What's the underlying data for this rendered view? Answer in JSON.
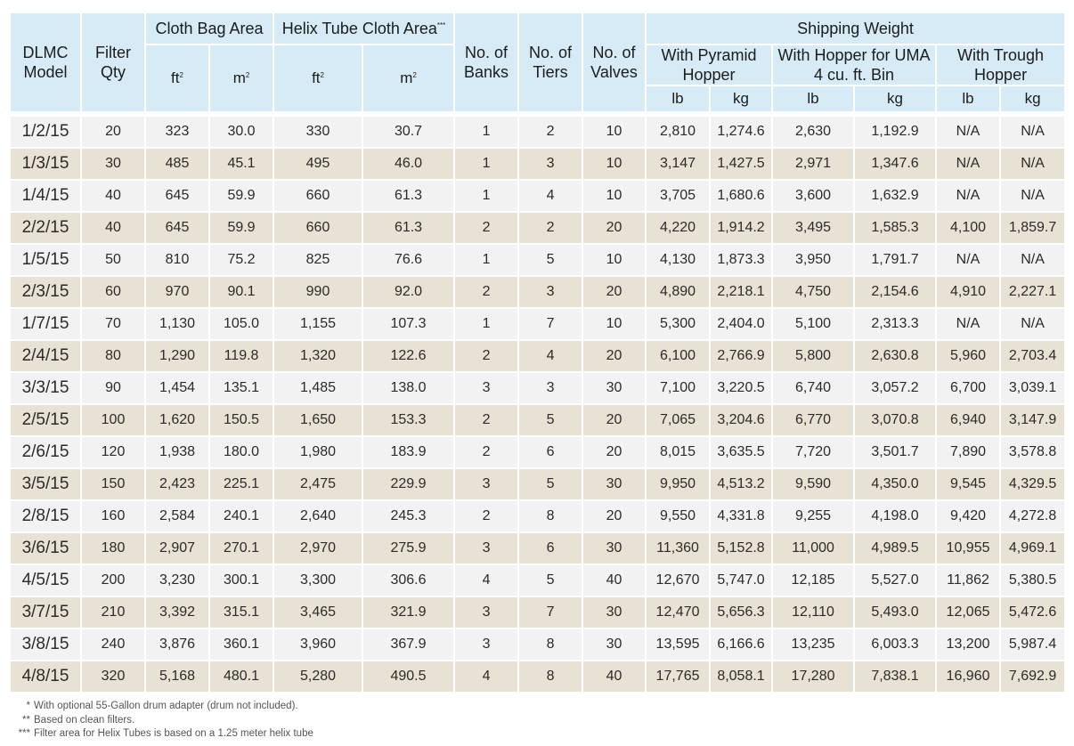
{
  "header": {
    "dlmc_model": "DLMC Model",
    "filter_qty": "Filter Qty",
    "cloth_bag_area": "Cloth Bag Area",
    "helix_tube_cloth_area": "Helix Tube Cloth Area",
    "helix_tube_mark": "***",
    "no_of_banks": "No. of Banks",
    "no_of_tiers": "No. of Tiers",
    "no_of_valves": "No. of Valves",
    "shipping_weight": "Shipping Weight",
    "with_pyramid_hopper": "With Pyramid Hopper",
    "with_hopper_uma": "With Hopper for UMA 4 cu. ft. Bin",
    "with_trough_hopper": "With Trough Hopper",
    "ft": "ft",
    "m": "m",
    "sq": "2",
    "lb": "lb",
    "kg": "kg"
  },
  "rows": [
    [
      "1/2/15",
      "20",
      "323",
      "30.0",
      "330",
      "30.7",
      "1",
      "2",
      "10",
      "2,810",
      "1,274.6",
      "2,630",
      "1,192.9",
      "N/A",
      "N/A"
    ],
    [
      "1/3/15",
      "30",
      "485",
      "45.1",
      "495",
      "46.0",
      "1",
      "3",
      "10",
      "3,147",
      "1,427.5",
      "2,971",
      "1,347.6",
      "N/A",
      "N/A"
    ],
    [
      "1/4/15",
      "40",
      "645",
      "59.9",
      "660",
      "61.3",
      "1",
      "4",
      "10",
      "3,705",
      "1,680.6",
      "3,600",
      "1,632.9",
      "N/A",
      "N/A"
    ],
    [
      "2/2/15",
      "40",
      "645",
      "59.9",
      "660",
      "61.3",
      "2",
      "2",
      "20",
      "4,220",
      "1,914.2",
      "3,495",
      "1,585.3",
      "4,100",
      "1,859.7"
    ],
    [
      "1/5/15",
      "50",
      "810",
      "75.2",
      "825",
      "76.6",
      "1",
      "5",
      "10",
      "4,130",
      "1,873.3",
      "3,950",
      "1,791.7",
      "N/A",
      "N/A"
    ],
    [
      "2/3/15",
      "60",
      "970",
      "90.1",
      "990",
      "92.0",
      "2",
      "3",
      "20",
      "4,890",
      "2,218.1",
      "4,750",
      "2,154.6",
      "4,910",
      "2,227.1"
    ],
    [
      "1/7/15",
      "70",
      "1,130",
      "105.0",
      "1,155",
      "107.3",
      "1",
      "7",
      "10",
      "5,300",
      "2,404.0",
      "5,100",
      "2,313.3",
      "N/A",
      "N/A"
    ],
    [
      "2/4/15",
      "80",
      "1,290",
      "119.8",
      "1,320",
      "122.6",
      "2",
      "4",
      "20",
      "6,100",
      "2,766.9",
      "5,800",
      "2,630.8",
      "5,960",
      "2,703.4"
    ],
    [
      "3/3/15",
      "90",
      "1,454",
      "135.1",
      "1,485",
      "138.0",
      "3",
      "3",
      "30",
      "7,100",
      "3,220.5",
      "6,740",
      "3,057.2",
      "6,700",
      "3,039.1"
    ],
    [
      "2/5/15",
      "100",
      "1,620",
      "150.5",
      "1,650",
      "153.3",
      "2",
      "5",
      "20",
      "7,065",
      "3,204.6",
      "6,770",
      "3,070.8",
      "6,940",
      "3,147.9"
    ],
    [
      "2/6/15",
      "120",
      "1,938",
      "180.0",
      "1,980",
      "183.9",
      "2",
      "6",
      "20",
      "8,015",
      "3,635.5",
      "7,720",
      "3,501.7",
      "7,890",
      "3,578.8"
    ],
    [
      "3/5/15",
      "150",
      "2,423",
      "225.1",
      "2,475",
      "229.9",
      "3",
      "5",
      "30",
      "9,950",
      "4,513.2",
      "9,590",
      "4,350.0",
      "9,545",
      "4,329.5"
    ],
    [
      "2/8/15",
      "160",
      "2,584",
      "240.1",
      "2,640",
      "245.3",
      "2",
      "8",
      "20",
      "9,550",
      "4,331.8",
      "9,255",
      "4,198.0",
      "9,420",
      "4,272.8"
    ],
    [
      "3/6/15",
      "180",
      "2,907",
      "270.1",
      "2,970",
      "275.9",
      "3",
      "6",
      "30",
      "11,360",
      "5,152.8",
      "11,000",
      "4,989.5",
      "10,955",
      "4,969.1"
    ],
    [
      "4/5/15",
      "200",
      "3,230",
      "300.1",
      "3,300",
      "306.6",
      "4",
      "5",
      "40",
      "12,670",
      "5,747.0",
      "12,185",
      "5,527.0",
      "11,862",
      "5,380.5"
    ],
    [
      "3/7/15",
      "210",
      "3,392",
      "315.1",
      "3,465",
      "321.9",
      "3",
      "7",
      "30",
      "12,470",
      "5,656.3",
      "12,110",
      "5,493.0",
      "12,065",
      "5,472.6"
    ],
    [
      "3/8/15",
      "240",
      "3,876",
      "360.1",
      "3,960",
      "367.9",
      "3",
      "8",
      "30",
      "13,595",
      "6,166.6",
      "13,235",
      "6,003.3",
      "13,200",
      "5,987.4"
    ],
    [
      "4/8/15",
      "320",
      "5,168",
      "480.1",
      "5,280",
      "490.5",
      "4",
      "8",
      "40",
      "17,765",
      "8,058.1",
      "17,280",
      "7,838.1",
      "16,960",
      "7,692.9"
    ]
  ],
  "notes": [
    {
      "mark": "*",
      "text": "With optional 55-Gallon drum adapter (drum not included)."
    },
    {
      "mark": "**",
      "text": "Based on clean filters."
    },
    {
      "mark": "***",
      "text": "Filter area for Helix Tubes is based on a 1.25 meter helix tube"
    }
  ],
  "colors": {
    "header_bg": "#d6ebf5",
    "row_odd": "#f2f2f2",
    "row_even": "#e7e2d3"
  }
}
